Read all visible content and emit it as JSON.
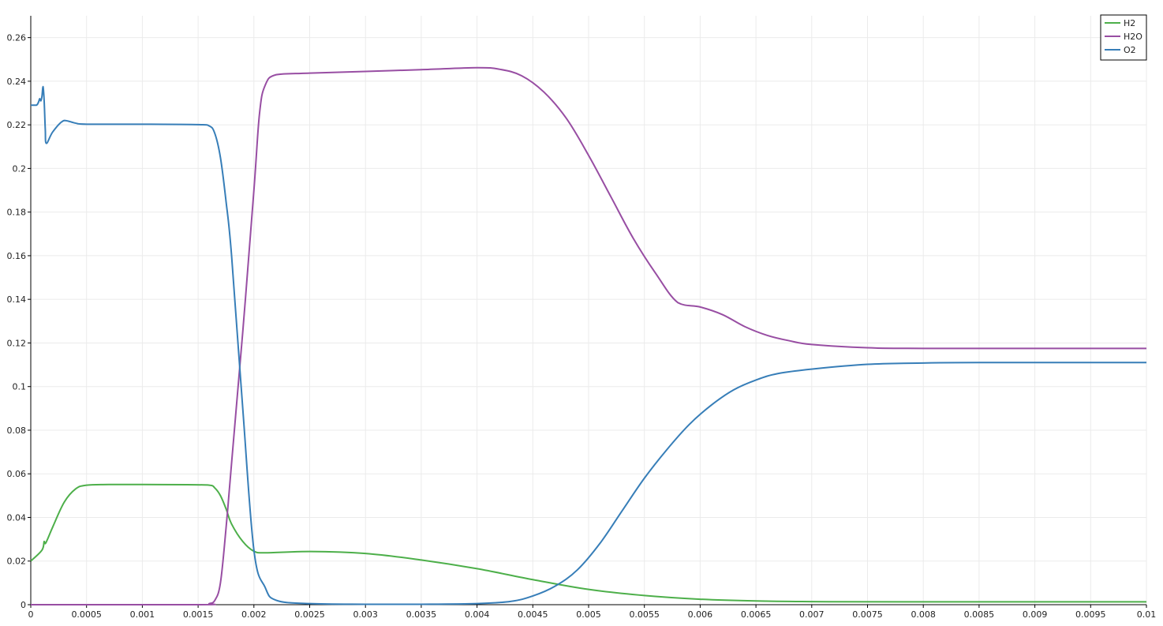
{
  "chart_data": {
    "type": "line",
    "title": "",
    "xlabel": "",
    "ylabel": "",
    "xlim": [
      0,
      0.01
    ],
    "ylim": [
      0,
      0.27
    ],
    "x_ticks": [
      "0",
      "0.0005",
      "0.001",
      "0.0015",
      "0.002",
      "0.0025",
      "0.003",
      "0.0035",
      "0.004",
      "0.0045",
      "0.005",
      "0.0055",
      "0.006",
      "0.0065",
      "0.007",
      "0.0075",
      "0.008",
      "0.0085",
      "0.009",
      "0.0095",
      "0.01"
    ],
    "y_ticks": [
      "0",
      "0.02",
      "0.04",
      "0.06",
      "0.08",
      "0.1",
      "0.12",
      "0.14",
      "0.16",
      "0.18",
      "0.2",
      "0.22",
      "0.24",
      "0.26"
    ],
    "grid": true,
    "legend_position": "top-right",
    "series": [
      {
        "name": "H2",
        "color": "#4daf4a",
        "points": [
          [
            0,
            0.02
          ],
          [
            0.0001,
            0.025
          ],
          [
            0.00012,
            0.029
          ],
          [
            0.00013,
            0.028
          ],
          [
            0.00015,
            0.03
          ],
          [
            0.0002,
            0.036
          ],
          [
            0.0003,
            0.047
          ],
          [
            0.0004,
            0.053
          ],
          [
            0.0005,
            0.0548
          ],
          [
            0.0007,
            0.0551
          ],
          [
            0.001,
            0.0551
          ],
          [
            0.0014,
            0.055
          ],
          [
            0.0016,
            0.0548
          ],
          [
            0.00165,
            0.0535
          ],
          [
            0.0017,
            0.05
          ],
          [
            0.00175,
            0.044
          ],
          [
            0.0018,
            0.037
          ],
          [
            0.0019,
            0.029
          ],
          [
            0.002,
            0.0245
          ],
          [
            0.0021,
            0.0238
          ],
          [
            0.0025,
            0.0244
          ],
          [
            0.003,
            0.0235
          ],
          [
            0.0035,
            0.0205
          ],
          [
            0.004,
            0.0165
          ],
          [
            0.0045,
            0.0115
          ],
          [
            0.005,
            0.007
          ],
          [
            0.0055,
            0.0042
          ],
          [
            0.006,
            0.0025
          ],
          [
            0.0065,
            0.0017
          ],
          [
            0.007,
            0.0014
          ],
          [
            0.008,
            0.0013
          ],
          [
            0.01,
            0.0013
          ]
        ]
      },
      {
        "name": "H2O",
        "color": "#984ea3",
        "points": [
          [
            0,
            0
          ],
          [
            0.0015,
            0
          ],
          [
            0.0016,
            0.0005
          ],
          [
            0.00165,
            0.002
          ],
          [
            0.0017,
            0.01
          ],
          [
            0.00175,
            0.035
          ],
          [
            0.0018,
            0.065
          ],
          [
            0.0019,
            0.125
          ],
          [
            0.002,
            0.19
          ],
          [
            0.00205,
            0.225
          ],
          [
            0.0021,
            0.238
          ],
          [
            0.0022,
            0.243
          ],
          [
            0.0025,
            0.2437
          ],
          [
            0.003,
            0.2445
          ],
          [
            0.0035,
            0.2453
          ],
          [
            0.004,
            0.2462
          ],
          [
            0.0042,
            0.2455
          ],
          [
            0.0044,
            0.2425
          ],
          [
            0.0046,
            0.235
          ],
          [
            0.0048,
            0.223
          ],
          [
            0.005,
            0.206
          ],
          [
            0.0052,
            0.187
          ],
          [
            0.0054,
            0.168
          ],
          [
            0.0056,
            0.152
          ],
          [
            0.0058,
            0.1385
          ],
          [
            0.006,
            0.1365
          ],
          [
            0.0062,
            0.133
          ],
          [
            0.0064,
            0.1275
          ],
          [
            0.0066,
            0.1235
          ],
          [
            0.0068,
            0.121
          ],
          [
            0.007,
            0.1193
          ],
          [
            0.0075,
            0.1178
          ],
          [
            0.008,
            0.1175
          ],
          [
            0.01,
            0.1175
          ]
        ]
      },
      {
        "name": "O2",
        "color": "#377eb8",
        "points": [
          [
            0,
            0.229
          ],
          [
            5e-05,
            0.229
          ],
          [
            7e-05,
            0.2305
          ],
          [
            8e-05,
            0.232
          ],
          [
            9e-05,
            0.231
          ],
          [
            0.0001,
            0.233
          ],
          [
            0.00011,
            0.2375
          ],
          [
            0.00012,
            0.231
          ],
          [
            0.00013,
            0.218
          ],
          [
            0.00014,
            0.2115
          ],
          [
            0.0002,
            0.217
          ],
          [
            0.0003,
            0.222
          ],
          [
            0.0004,
            0.2208
          ],
          [
            0.0005,
            0.2203
          ],
          [
            0.001,
            0.2203
          ],
          [
            0.0015,
            0.2201
          ],
          [
            0.0016,
            0.2195
          ],
          [
            0.00165,
            0.216
          ],
          [
            0.0017,
            0.205
          ],
          [
            0.00175,
            0.185
          ],
          [
            0.0018,
            0.16
          ],
          [
            0.0019,
            0.09
          ],
          [
            0.002,
            0.025
          ],
          [
            0.0021,
            0.008
          ],
          [
            0.0022,
            0.002
          ],
          [
            0.0025,
            0.0005
          ],
          [
            0.003,
            0.0002
          ],
          [
            0.0035,
            0.0002
          ],
          [
            0.004,
            0.0005
          ],
          [
            0.0043,
            0.0015
          ],
          [
            0.0045,
            0.004
          ],
          [
            0.0047,
            0.0085
          ],
          [
            0.0049,
            0.016
          ],
          [
            0.0051,
            0.028
          ],
          [
            0.0053,
            0.043
          ],
          [
            0.0055,
            0.058
          ],
          [
            0.0057,
            0.071
          ],
          [
            0.0059,
            0.0825
          ],
          [
            0.0061,
            0.0915
          ],
          [
            0.0063,
            0.0985
          ],
          [
            0.0065,
            0.103
          ],
          [
            0.0067,
            0.106
          ],
          [
            0.007,
            0.108
          ],
          [
            0.0075,
            0.1102
          ],
          [
            0.008,
            0.1108
          ],
          [
            0.0085,
            0.111
          ],
          [
            0.01,
            0.111
          ]
        ]
      }
    ]
  }
}
